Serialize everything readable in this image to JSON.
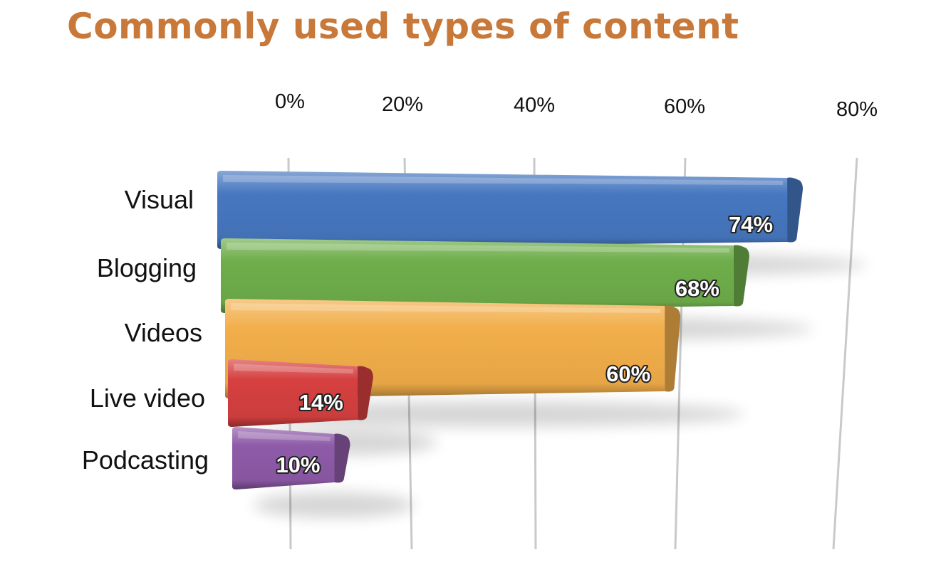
{
  "chart_data": {
    "type": "bar",
    "orientation": "horizontal",
    "title": "Commonly used types of content",
    "categories": [
      "Visual",
      "Blogging",
      "Videos",
      "Live video",
      "Podcasting"
    ],
    "values": [
      74,
      68,
      60,
      14,
      10
    ],
    "value_labels": [
      "74%",
      "68%",
      "60%",
      "14%",
      "10%"
    ],
    "x_ticks": [
      "0%",
      "20%",
      "40%",
      "60%",
      "80%"
    ],
    "x_tick_values": [
      0,
      20,
      40,
      60,
      80
    ],
    "xlim": [
      0,
      80
    ],
    "grid": true,
    "legend": "none",
    "colors": [
      "#4677C0",
      "#6FAE4B",
      "#F2AE4A",
      "#D64040",
      "#8E5BA8"
    ]
  }
}
